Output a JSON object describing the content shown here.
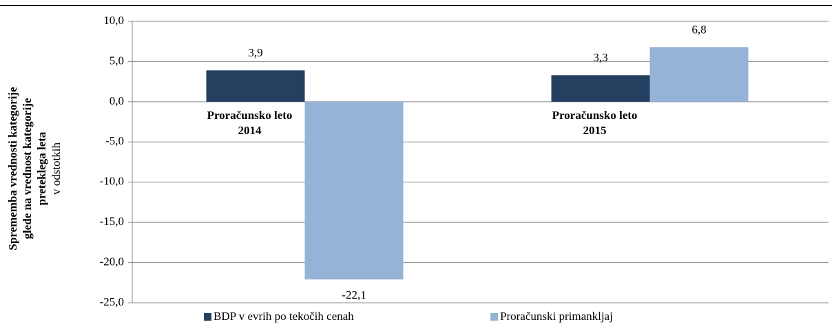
{
  "chart_data": {
    "type": "bar",
    "y_label": [
      "Sprememba vrednosti kategorije",
      "glede na vrednost  kategorije",
      "preteklega leta"
    ],
    "y_unit": "v odstotkih",
    "categories": [
      "Proračunsko leto 2014",
      "Proračunsko leto 2015"
    ],
    "series": [
      {
        "name": "BDP v evrih po tekočih cenah",
        "color": "#243f60",
        "values": [
          3.9,
          3.3
        ],
        "value_labels": [
          "3,9",
          "3,3"
        ]
      },
      {
        "name": "Proračunski primankljaj",
        "color": "#95b3d7",
        "values": [
          -22.1,
          6.8
        ],
        "value_labels": [
          "-22,1",
          "6,8"
        ]
      }
    ],
    "ylim": [
      -25,
      10
    ],
    "yticks": [
      {
        "value": 10,
        "label": "10,0"
      },
      {
        "value": 5,
        "label": "5,0"
      },
      {
        "value": 0,
        "label": "0,0"
      },
      {
        "value": -5,
        "label": "-5,0"
      },
      {
        "value": -10,
        "label": "-10,0"
      },
      {
        "value": -15,
        "label": "-15,0"
      },
      {
        "value": -20,
        "label": "-20,0"
      },
      {
        "value": -25,
        "label": "-25,0"
      }
    ],
    "grid": true
  }
}
